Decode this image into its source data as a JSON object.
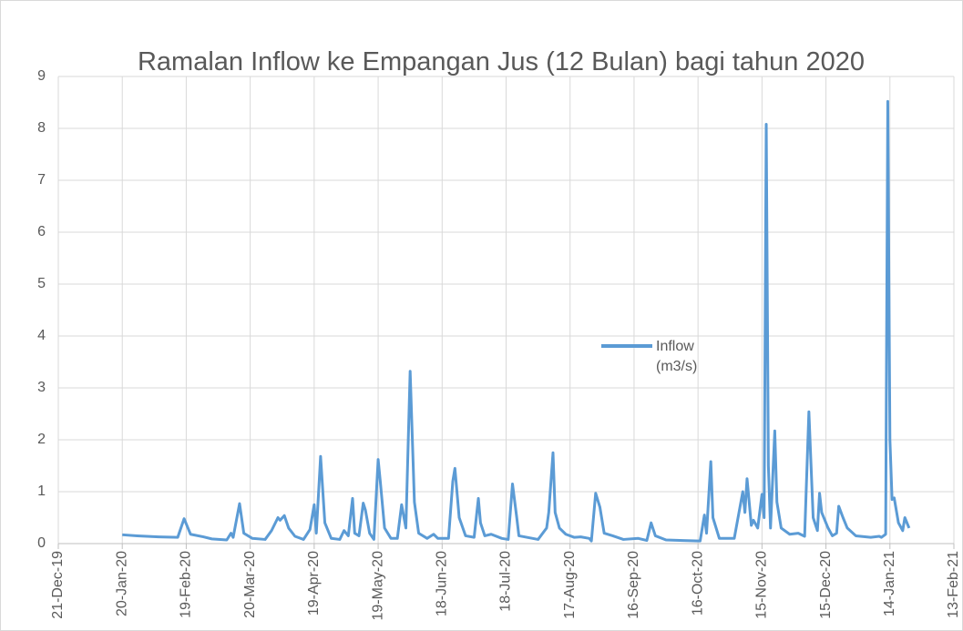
{
  "chart_data": {
    "type": "line",
    "title": "Ramalan Inflow ke Empangan Jus (12 Bulan) bagi tahun 2020",
    "x": [
      "2020-01-20",
      "2020-01-27",
      "2020-02-06",
      "2020-02-15",
      "2020-02-18",
      "2020-02-21",
      "2020-02-27",
      "2020-03-02",
      "2020-03-09",
      "2020-03-11",
      "2020-03-12",
      "2020-03-15",
      "2020-03-17",
      "2020-03-21",
      "2020-03-27",
      "2020-03-30",
      "2020-04-02",
      "2020-04-03",
      "2020-04-05",
      "2020-04-07",
      "2020-04-10",
      "2020-04-14",
      "2020-04-17",
      "2020-04-19",
      "2020-04-20",
      "2020-04-22",
      "2020-04-24",
      "2020-04-27",
      "2020-05-01",
      "2020-05-03",
      "2020-05-05",
      "2020-05-07",
      "2020-05-08",
      "2020-05-10",
      "2020-05-12",
      "2020-05-13",
      "2020-05-15",
      "2020-05-17",
      "2020-05-19",
      "2020-05-20",
      "2020-05-22",
      "2020-05-25",
      "2020-05-28",
      "2020-05-30",
      "2020-06-01",
      "2020-06-03",
      "2020-06-05",
      "2020-06-07",
      "2020-06-11",
      "2020-06-14",
      "2020-06-16",
      "2020-06-21",
      "2020-06-23",
      "2020-06-24",
      "2020-06-26",
      "2020-06-29",
      "2020-07-03",
      "2020-07-05",
      "2020-07-06",
      "2020-07-08",
      "2020-07-11",
      "2020-07-16",
      "2020-07-19",
      "2020-07-21",
      "2020-07-23",
      "2020-07-24",
      "2020-08-02",
      "2020-08-06",
      "2020-08-07",
      "2020-08-09",
      "2020-08-10",
      "2020-08-12",
      "2020-08-15",
      "2020-08-19",
      "2020-08-22",
      "2020-08-26",
      "2020-08-27",
      "2020-08-29",
      "2020-08-31",
      "2020-09-02",
      "2020-09-06",
      "2020-09-11",
      "2020-09-18",
      "2020-09-22",
      "2020-09-24",
      "2020-09-26",
      "2020-10-01",
      "2020-10-09",
      "2020-10-17",
      "2020-10-19",
      "2020-10-20",
      "2020-10-22",
      "2020-10-23",
      "2020-10-26",
      "2020-11-02",
      "2020-11-04",
      "2020-11-06",
      "2020-11-07",
      "2020-11-08",
      "2020-11-10",
      "2020-11-11",
      "2020-11-13",
      "2020-11-15",
      "2020-11-16",
      "2020-11-17",
      "2020-11-18",
      "2020-11-19",
      "2020-11-21",
      "2020-11-22",
      "2020-11-24",
      "2020-11-28",
      "2020-12-02",
      "2020-12-05",
      "2020-12-07",
      "2020-12-09",
      "2020-12-11",
      "2020-12-12",
      "2020-12-13",
      "2020-12-16",
      "2020-12-18",
      "2020-12-20",
      "2020-12-21",
      "2020-12-23",
      "2020-12-25",
      "2020-12-29",
      "2021-01-05",
      "2021-01-09",
      "2021-01-10",
      "2021-01-12",
      "2021-01-13",
      "2021-01-14",
      "2021-01-15",
      "2021-01-16",
      "2021-01-18",
      "2021-01-20",
      "2021-01-21",
      "2021-01-23"
    ],
    "series": [
      {
        "name": "Inflow (m3/s)",
        "color": "#5b9bd5",
        "values": [
          0.17,
          0.15,
          0.13,
          0.12,
          0.48,
          0.18,
          0.13,
          0.09,
          0.07,
          0.2,
          0.12,
          0.77,
          0.2,
          0.1,
          0.08,
          0.25,
          0.5,
          0.45,
          0.54,
          0.3,
          0.14,
          0.08,
          0.27,
          0.75,
          0.2,
          1.68,
          0.4,
          0.1,
          0.08,
          0.25,
          0.15,
          0.87,
          0.2,
          0.15,
          0.78,
          0.65,
          0.2,
          0.08,
          1.62,
          1.2,
          0.3,
          0.1,
          0.1,
          0.75,
          0.3,
          3.32,
          0.8,
          0.2,
          0.1,
          0.18,
          0.1,
          0.1,
          1.2,
          1.45,
          0.5,
          0.15,
          0.12,
          0.87,
          0.4,
          0.15,
          0.18,
          0.1,
          0.08,
          1.15,
          0.5,
          0.15,
          0.08,
          0.3,
          0.6,
          1.75,
          0.6,
          0.3,
          0.18,
          0.12,
          0.13,
          0.1,
          0.05,
          0.97,
          0.7,
          0.2,
          0.15,
          0.08,
          0.1,
          0.06,
          0.4,
          0.15,
          0.07,
          0.06,
          0.05,
          0.55,
          0.2,
          1.58,
          0.5,
          0.1,
          0.1,
          0.55,
          1.0,
          0.6,
          1.25,
          0.35,
          0.45,
          0.3,
          0.95,
          0.5,
          8.08,
          1.5,
          0.3,
          2.17,
          0.8,
          0.3,
          0.18,
          0.2,
          0.14,
          2.54,
          0.5,
          0.25,
          0.97,
          0.6,
          0.3,
          0.15,
          0.2,
          0.72,
          0.5,
          0.3,
          0.15,
          0.12,
          0.14,
          0.12,
          0.18,
          8.52,
          2.0,
          0.85,
          0.88,
          0.4,
          0.25,
          0.5,
          0.3
        ]
      }
    ],
    "xlim": [
      "2019-12-21",
      "2021-02-13"
    ],
    "xticks": [
      {
        "value": "2019-12-21",
        "label": "21-Dec-19"
      },
      {
        "value": "2020-01-20",
        "label": "20-Jan-20"
      },
      {
        "value": "2020-02-19",
        "label": "19-Feb-20"
      },
      {
        "value": "2020-03-20",
        "label": "20-Mar-20"
      },
      {
        "value": "2020-04-19",
        "label": "19-Apr-20"
      },
      {
        "value": "2020-05-19",
        "label": "19-May-20"
      },
      {
        "value": "2020-06-18",
        "label": "18-Jun-20"
      },
      {
        "value": "2020-07-18",
        "label": "18-Jul-20"
      },
      {
        "value": "2020-08-17",
        "label": "17-Aug-20"
      },
      {
        "value": "2020-09-16",
        "label": "16-Sep-20"
      },
      {
        "value": "2020-10-16",
        "label": "16-Oct-20"
      },
      {
        "value": "2020-11-15",
        "label": "15-Nov-20"
      },
      {
        "value": "2020-12-15",
        "label": "15-Dec-20"
      },
      {
        "value": "2021-01-14",
        "label": "14-Jan-21"
      },
      {
        "value": "2021-02-13",
        "label": "13-Feb-21"
      }
    ],
    "ylim": [
      0,
      9
    ],
    "yticks": [
      0,
      1,
      2,
      3,
      4,
      5,
      6,
      7,
      8,
      9
    ],
    "grid": true,
    "legend": "right"
  }
}
